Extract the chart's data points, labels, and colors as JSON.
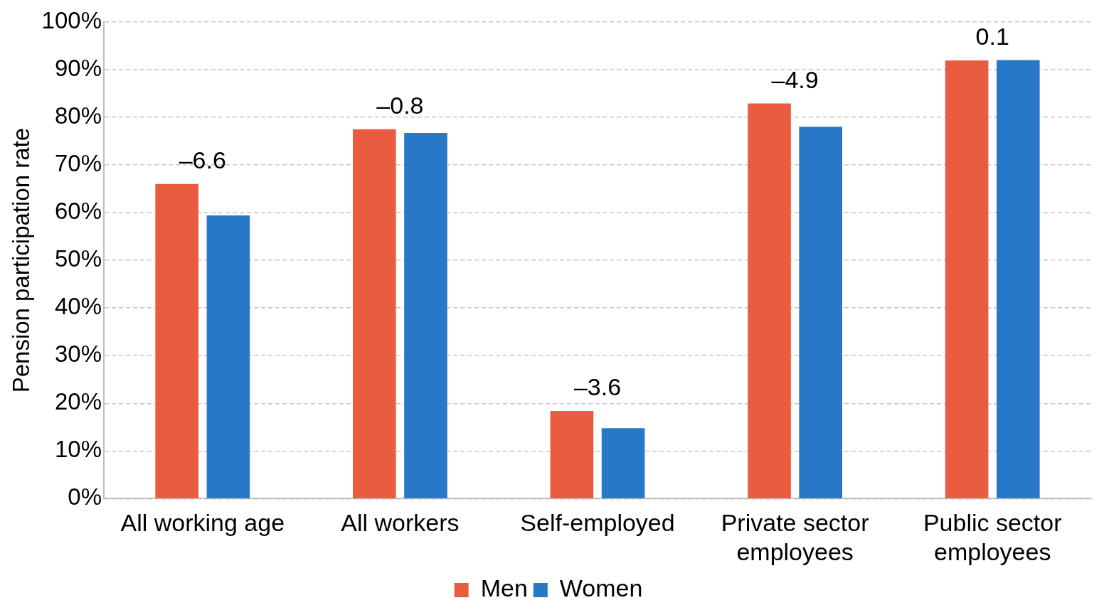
{
  "chart_data": {
    "type": "bar",
    "ylabel": "Pension participation rate",
    "categories": [
      "All working age",
      "All workers",
      "Self-employed",
      "Private sector employees",
      "Public sector employees"
    ],
    "series": [
      {
        "name": "Men",
        "color": "#e95c40",
        "values": [
          66.0,
          77.5,
          18.4,
          82.9,
          91.9
        ]
      },
      {
        "name": "Women",
        "color": "#2878c8",
        "values": [
          59.4,
          76.7,
          14.8,
          78.0,
          92.0
        ]
      }
    ],
    "ylim": [
      0,
      100
    ],
    "yticks": [
      {
        "value": 0,
        "label": "0%"
      },
      {
        "value": 10,
        "label": "10%"
      },
      {
        "value": 20,
        "label": "20%"
      },
      {
        "value": 30,
        "label": "30%"
      },
      {
        "value": 40,
        "label": "40%"
      },
      {
        "value": 50,
        "label": "50%"
      },
      {
        "value": 60,
        "label": "60%"
      },
      {
        "value": 70,
        "label": "70%"
      },
      {
        "value": 80,
        "label": "80%"
      },
      {
        "value": 90,
        "label": "90%"
      },
      {
        "value": 100,
        "label": "100%"
      }
    ],
    "grid": "y",
    "legend": "bottom",
    "annotations": [
      "–6.6",
      "–0.8",
      "–3.6",
      "–4.9",
      "0.1"
    ]
  }
}
